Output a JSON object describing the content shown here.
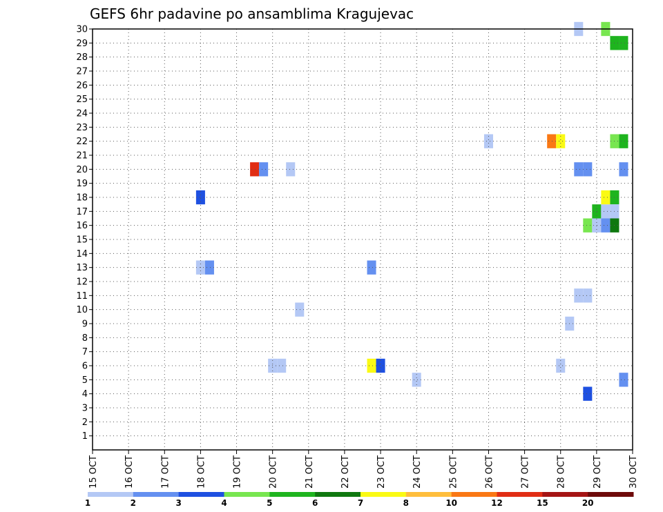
{
  "chart_data": {
    "type": "heatmap",
    "title": "GEFS 6hr padavine po ansamblima Kragujevac",
    "xlabel": "",
    "ylabel": "",
    "x_categories": [
      "15 OCT",
      "16 OCT",
      "17 OCT",
      "18 OCT",
      "19 OCT",
      "20 OCT",
      "21 OCT",
      "22 OCT",
      "23 OCT",
      "24 OCT",
      "25 OCT",
      "26 OCT",
      "27 OCT",
      "28 OCT",
      "29 OCT",
      "30 OCT"
    ],
    "y_ticks": [
      1,
      2,
      3,
      4,
      5,
      6,
      7,
      8,
      9,
      10,
      11,
      12,
      13,
      14,
      15,
      16,
      17,
      18,
      19,
      20,
      21,
      22,
      23,
      24,
      25,
      26,
      27,
      28,
      29,
      30
    ],
    "ylim": [
      0,
      30
    ],
    "x_range_days": [
      0,
      15
    ],
    "grid": true,
    "colorbar": {
      "labels": [
        "1",
        "2",
        "3",
        "4",
        "5",
        "6",
        "7",
        "8",
        "10",
        "12",
        "15",
        "20"
      ],
      "colors": [
        "#b4c8f5",
        "#6490f0",
        "#1e50e1",
        "#78e650",
        "#1eb41e",
        "#0f780f",
        "#fafa14",
        "#ffbe3c",
        "#fa7814",
        "#e12d14",
        "#a51414",
        "#6e0a0a"
      ]
    },
    "cells": [
      {
        "day": 3.0,
        "member": 18,
        "color": 2
      },
      {
        "day": 3.0,
        "member": 13,
        "color": 0
      },
      {
        "day": 3.25,
        "member": 13,
        "color": 1
      },
      {
        "day": 4.5,
        "member": 20,
        "color": 9
      },
      {
        "day": 4.75,
        "member": 20,
        "color": 1
      },
      {
        "day": 5.0,
        "member": 6,
        "color": 0
      },
      {
        "day": 5.25,
        "member": 6,
        "color": 0
      },
      {
        "day": 5.5,
        "member": 20,
        "color": 0
      },
      {
        "day": 5.75,
        "member": 10,
        "color": 0
      },
      {
        "day": 7.75,
        "member": 13,
        "color": 1
      },
      {
        "day": 7.75,
        "member": 6,
        "color": 6
      },
      {
        "day": 8.0,
        "member": 6,
        "color": 2
      },
      {
        "day": 9.0,
        "member": 5,
        "color": 0
      },
      {
        "day": 11.0,
        "member": 22,
        "color": 0
      },
      {
        "day": 12.75,
        "member": 22,
        "color": 8
      },
      {
        "day": 13.0,
        "member": 22,
        "color": 6
      },
      {
        "day": 13.0,
        "member": 6,
        "color": 0
      },
      {
        "day": 13.25,
        "member": 9,
        "color": 0
      },
      {
        "day": 13.5,
        "member": 30,
        "color": 0
      },
      {
        "day": 13.5,
        "member": 20,
        "color": 1
      },
      {
        "day": 13.5,
        "member": 11,
        "color": 0
      },
      {
        "day": 13.75,
        "member": 20,
        "color": 1
      },
      {
        "day": 13.75,
        "member": 11,
        "color": 0
      },
      {
        "day": 13.75,
        "member": 16,
        "color": 3
      },
      {
        "day": 13.75,
        "member": 4,
        "color": 2
      },
      {
        "day": 14.0,
        "member": 16,
        "color": 0
      },
      {
        "day": 14.0,
        "member": 17,
        "color": 4
      },
      {
        "day": 14.25,
        "member": 30,
        "color": 3
      },
      {
        "day": 14.25,
        "member": 16,
        "color": 1
      },
      {
        "day": 14.25,
        "member": 17,
        "color": 0
      },
      {
        "day": 14.25,
        "member": 18,
        "color": 6
      },
      {
        "day": 14.5,
        "member": 29,
        "color": 4
      },
      {
        "day": 14.5,
        "member": 22,
        "color": 3
      },
      {
        "day": 14.5,
        "member": 18,
        "color": 4
      },
      {
        "day": 14.5,
        "member": 17,
        "color": 0
      },
      {
        "day": 14.5,
        "member": 16,
        "color": 5
      },
      {
        "day": 14.75,
        "member": 29,
        "color": 4
      },
      {
        "day": 14.75,
        "member": 22,
        "color": 4
      },
      {
        "day": 14.75,
        "member": 20,
        "color": 1
      },
      {
        "day": 14.75,
        "member": 5,
        "color": 1
      }
    ]
  }
}
